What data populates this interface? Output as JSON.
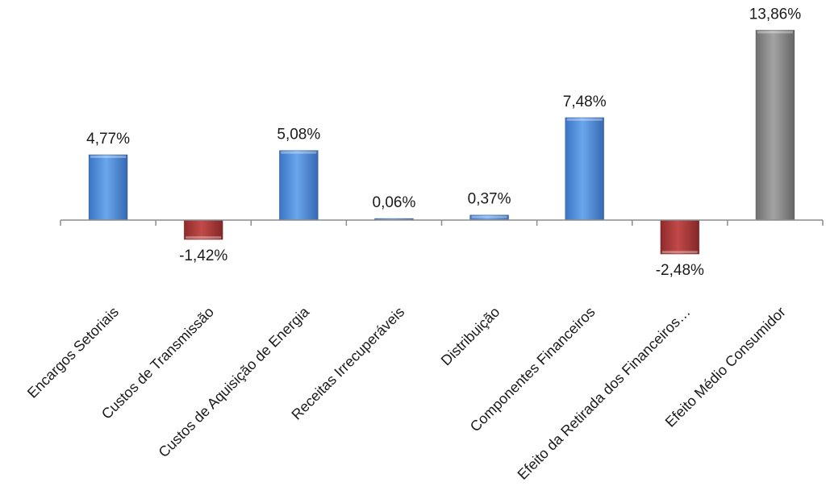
{
  "chart_data": {
    "type": "bar",
    "categories": [
      "Encargos Setoriais",
      "Custos de Transmissão",
      "Custos de Aquisição de Energia",
      "Receitas Irrecuperáveis",
      "Distribuição",
      "Componentes Financeiros",
      "Efeito da Retirada dos Financeiros…",
      "Efeito Médio Consumidor"
    ],
    "values": [
      4.77,
      -1.42,
      5.08,
      0.06,
      0.37,
      7.48,
      -2.48,
      13.86
    ],
    "value_labels": [
      "4,77%",
      "-1,42%",
      "5,08%",
      "0,06%",
      "0,37%",
      "7,48%",
      "-2,48%",
      "13,86%"
    ],
    "bar_colors": [
      "#4f8fe0",
      "#b23a3a",
      "#4f8fe0",
      "#4f8fe0",
      "#4f8fe0",
      "#4f8fe0",
      "#b23a3a",
      "#8f8f8f"
    ],
    "title": "",
    "xlabel": "",
    "ylabel": "",
    "ylim": [
      -4,
      15
    ],
    "grid": false,
    "legend": "none",
    "colors": {
      "positive": "#4f8fe0",
      "negative": "#b23a3a",
      "total": "#8f8f8f",
      "axis": "#8c8c8c"
    }
  }
}
